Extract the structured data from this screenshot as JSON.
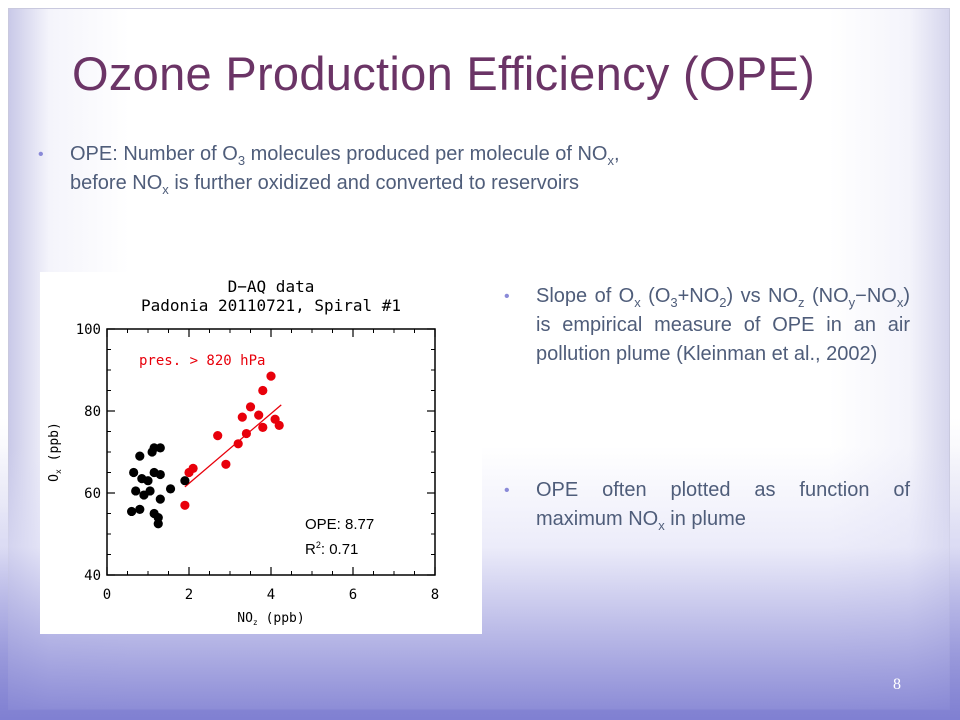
{
  "slide": {
    "title": "Ozone Production Efficiency (OPE)",
    "page_number": "8",
    "bullets": {
      "b1": {
        "p1": "OPE: Number of O",
        "s1": "3",
        "p2": " molecules produced per molecule of NO",
        "s2": "x",
        "p3": ",",
        "p4": "before NO",
        "s3": "x",
        "p5": " is further oxidized and converted to reservoirs"
      },
      "b2": {
        "p1": "Slope of O",
        "s1": "x",
        "p2": " (O",
        "s2": "3",
        "p3": "+NO",
        "s3": "2",
        "p4": ") vs NO",
        "s4": "z",
        "p5": " (NO",
        "s5": "y",
        "p6": "−NO",
        "s6": "x",
        "p7": ") is empirical measure of OPE in an air pollution plume (Kleinman et al., 2002)"
      },
      "b3": {
        "p1": "OPE often plotted as function of maximum NO",
        "s1": "x",
        "p2": " in plume"
      }
    }
  },
  "chart_data": {
    "type": "scatter",
    "title": "D−AQ data",
    "subtitle": "Padonia 20110721, Spiral #1",
    "annotation": "pres. > 820 hPa",
    "xlabel_main": "NO",
    "xlabel_sub": "z",
    "xlabel_unit": " (ppb)",
    "ylabel_main": "O",
    "ylabel_sub": "x",
    "ylabel_unit": " (ppb)",
    "xlim": [
      0,
      8
    ],
    "ylim": [
      40,
      100
    ],
    "xticks": [
      "0",
      "2",
      "4",
      "6",
      "8"
    ],
    "yticks": [
      "40",
      "60",
      "80",
      "100"
    ],
    "stats": {
      "ope": "OPE: 8.77",
      "r2_prefix": "R",
      "r2_sup": "2",
      "r2_value": ": 0.71"
    },
    "colors": {
      "low_pressure": "#000000",
      "high_pressure": "#e8000b",
      "fit": "#e8000b"
    },
    "series": [
      {
        "name": "",
        "color": "#000000",
        "points": [
          [
            0.6,
            55.5
          ],
          [
            0.8,
            56
          ],
          [
            0.65,
            65
          ],
          [
            0.7,
            60.5
          ],
          [
            0.9,
            59.5
          ],
          [
            0.85,
            63.5
          ],
          [
            0.8,
            69
          ],
          [
            1.1,
            70
          ],
          [
            1.15,
            71
          ],
          [
            1.3,
            71
          ],
          [
            1.0,
            63
          ],
          [
            1.05,
            60.5
          ],
          [
            1.15,
            65
          ],
          [
            1.3,
            64.5
          ],
          [
            1.15,
            55
          ],
          [
            1.25,
            54
          ],
          [
            1.25,
            52.5
          ],
          [
            1.3,
            58.5
          ],
          [
            1.55,
            61
          ],
          [
            1.9,
            63
          ]
        ]
      },
      {
        "name": "pres. > 820 hPa",
        "color": "#e8000b",
        "points": [
          [
            1.9,
            57
          ],
          [
            2.0,
            65
          ],
          [
            2.1,
            66
          ],
          [
            2.7,
            74
          ],
          [
            2.9,
            67
          ],
          [
            3.2,
            72
          ],
          [
            3.4,
            74.5
          ],
          [
            3.3,
            78.5
          ],
          [
            3.5,
            81
          ],
          [
            3.7,
            79
          ],
          [
            3.8,
            76
          ],
          [
            3.8,
            85
          ],
          [
            4.0,
            88.5
          ],
          [
            4.1,
            78
          ],
          [
            4.2,
            76.5
          ]
        ]
      }
    ],
    "fit": {
      "x": [
        1.9,
        4.25
      ],
      "y": [
        61.5,
        81.5
      ]
    }
  }
}
